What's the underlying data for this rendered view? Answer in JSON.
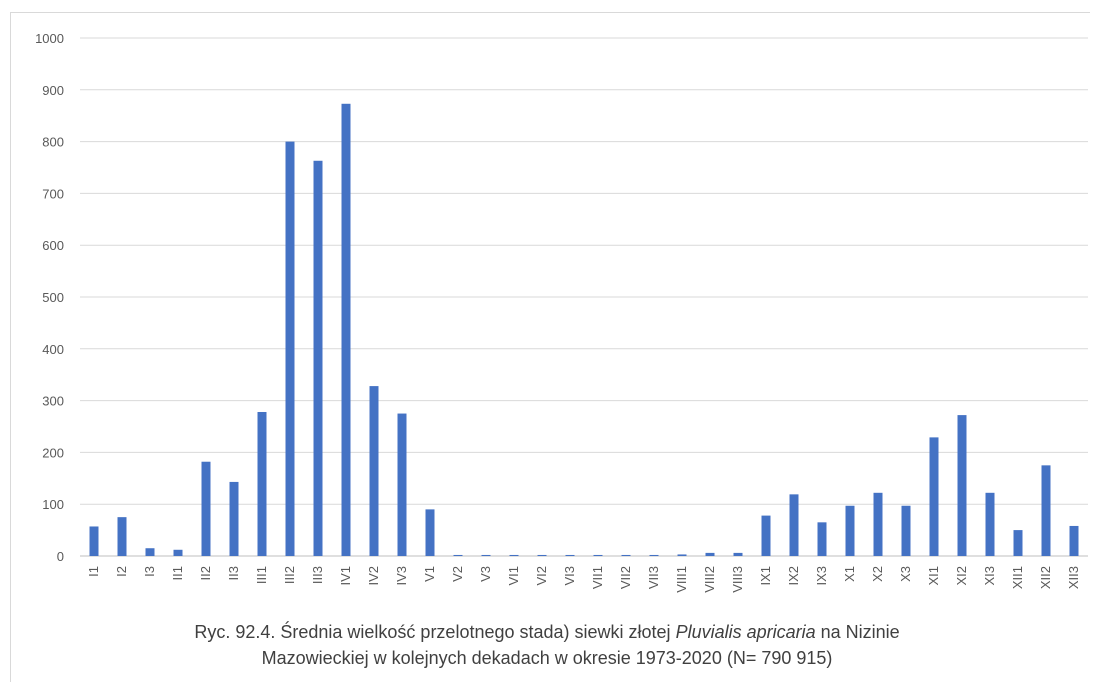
{
  "chart_data": {
    "type": "bar",
    "ylim": [
      0,
      1000
    ],
    "yticks": [
      0,
      100,
      200,
      300,
      400,
      500,
      600,
      700,
      800,
      900,
      1000
    ],
    "grid": true,
    "bar_color": "#4472c4",
    "categories": [
      "I1",
      "I2",
      "I3",
      "II1",
      "II2",
      "II3",
      "III1",
      "III2",
      "III3",
      "IV1",
      "IV2",
      "IV3",
      "V1",
      "V2",
      "V3",
      "VI1",
      "VI2",
      "VI3",
      "VII1",
      "VII2",
      "VII3",
      "VIII1",
      "VIII2",
      "VIII3",
      "IX1",
      "IX2",
      "IX3",
      "X1",
      "X2",
      "X3",
      "XI1",
      "XI2",
      "XI3",
      "XII1",
      "XII2",
      "XII3"
    ],
    "values": [
      57,
      75,
      15,
      12,
      182,
      143,
      278,
      800,
      763,
      873,
      328,
      275,
      90,
      2,
      2,
      2,
      2,
      2,
      2,
      2,
      2,
      3,
      6,
      6,
      78,
      119,
      65,
      97,
      122,
      97,
      229,
      272,
      122,
      50,
      175,
      58
    ]
  },
  "caption": {
    "line1_before": "Ryc. 92.4. Średnia wielkość przelotnego stada)  siewki złotej ",
    "line1_italic": "Pluvialis apricaria",
    "line1_after": " na Nizinie",
    "line2": "Mazowieckiej w kolejnych dekadach w okresie 1973-2020 (N= 790  915)"
  }
}
